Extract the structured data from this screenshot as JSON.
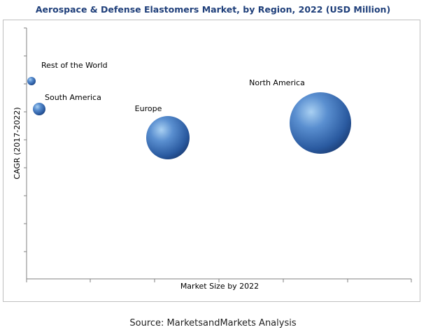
{
  "chart_data": {
    "type": "bubble",
    "title": "Aerospace & Defense Elastomers Market, by Region, 2022 (USD Million)",
    "xlabel": "Market Size by 2022",
    "ylabel": "CAGR (2017-2022)",
    "x_ticks_labeled": false,
    "y_ticks_labeled": false,
    "grid": false,
    "points": [
      {
        "label": "Rest of the World",
        "size_rank": 1
      },
      {
        "label": "South America",
        "size_rank": 2
      },
      {
        "label": "Europe",
        "size_rank": 3
      },
      {
        "label": "North America",
        "size_rank": 4
      }
    ]
  },
  "source": "Source: MarketsandMarkets Analysis"
}
